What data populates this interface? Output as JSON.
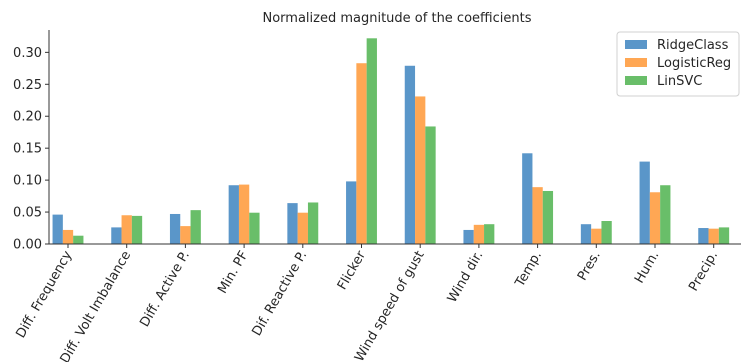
{
  "chart_data": {
    "type": "bar",
    "title": "Normalized magnitude of the coefficients",
    "xlabel": "",
    "ylabel": "",
    "categories": [
      "Diff. Frequency",
      "Diff. Volt Imbalance",
      "Diff. Active P.",
      "Min. PF",
      "Dif. Reactive P.",
      "Flicker",
      "Wind speed of gust",
      "Wind dir.",
      "Temp.",
      "Pres.",
      "Hum.",
      "Precip."
    ],
    "series": [
      {
        "name": "RidgeClass",
        "color": "#4c8dc4",
        "values": [
          0.046,
          0.026,
          0.047,
          0.092,
          0.064,
          0.098,
          0.279,
          0.022,
          0.142,
          0.031,
          0.129,
          0.025
        ]
      },
      {
        "name": "LogisticReg",
        "color": "#ff9f45",
        "values": [
          0.022,
          0.045,
          0.028,
          0.093,
          0.049,
          0.283,
          0.231,
          0.03,
          0.089,
          0.024,
          0.081,
          0.024
        ]
      },
      {
        "name": "LinSVC",
        "color": "#5cb85c",
        "values": [
          0.013,
          0.044,
          0.053,
          0.049,
          0.065,
          0.322,
          0.184,
          0.031,
          0.083,
          0.036,
          0.092,
          0.026
        ]
      }
    ],
    "ylim": [
      0,
      0.335
    ],
    "yticks": [
      0.0,
      0.05,
      0.1,
      0.15,
      0.2,
      0.25,
      0.3
    ],
    "ytick_labels": [
      "0.00",
      "0.05",
      "0.10",
      "0.15",
      "0.20",
      "0.25",
      "0.30"
    ],
    "legend_position": "top-right",
    "grid": false
  }
}
